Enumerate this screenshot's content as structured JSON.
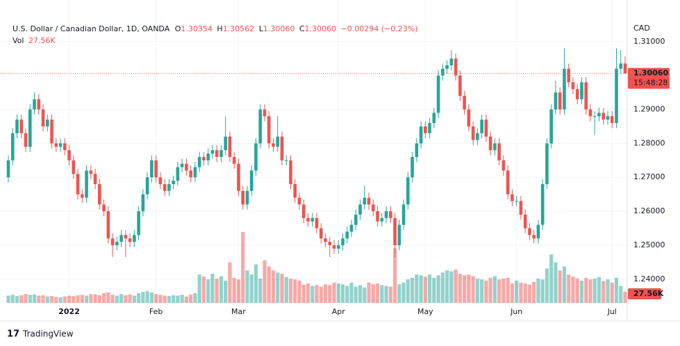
{
  "chart_data": {
    "type": "candlestick",
    "title": "U.S. Dollar / Canadian Dollar, 1D, OANDA",
    "ohlc_names": [
      "O",
      "H",
      "L",
      "C"
    ],
    "ohlc_values": [
      1.30354,
      1.30562,
      1.3006,
      1.3006
    ],
    "ohlc_value_labels": [
      "1.30354",
      "1.30562",
      "1.30060",
      "1.30060"
    ],
    "change_label": "−0.00294 (−0.23%)",
    "volume_title": "Vol",
    "last_volume_label": "27.56K",
    "currency": "CAD",
    "last_price_label": "1.30060",
    "countdown": "15:48:28",
    "brand": "TradingView",
    "up_color": "#26a69a",
    "down_color": "#ef5350",
    "grid": true,
    "categories": [
      null,
      null,
      null,
      null,
      null,
      null,
      null,
      null,
      null,
      null,
      null,
      null,
      null,
      null,
      "2022",
      null,
      null,
      null,
      null,
      null,
      null,
      null,
      null,
      null,
      null,
      null,
      null,
      null,
      null,
      null,
      null,
      null,
      null,
      null,
      "Feb",
      null,
      null,
      null,
      null,
      null,
      null,
      null,
      null,
      null,
      null,
      null,
      null,
      null,
      null,
      null,
      null,
      null,
      null,
      "Mar",
      null,
      null,
      null,
      null,
      null,
      null,
      null,
      null,
      null,
      null,
      null,
      null,
      null,
      null,
      null,
      null,
      null,
      null,
      null,
      null,
      null,
      null,
      "Apr",
      null,
      null,
      null,
      null,
      null,
      null,
      null,
      null,
      null,
      null,
      null,
      null,
      null,
      null,
      null,
      null,
      null,
      null,
      null,
      "May",
      null,
      null,
      null,
      null,
      null,
      null,
      null,
      null,
      null,
      null,
      null,
      null,
      null,
      null,
      null,
      null,
      null,
      null,
      null,
      null,
      "Jun",
      null,
      null,
      null,
      null,
      null,
      null,
      null,
      null,
      null,
      null,
      null,
      null,
      null,
      null,
      null,
      null,
      null,
      null,
      null,
      null,
      null,
      "Jul",
      null,
      null,
      null
    ],
    "open": [
      1.27,
      1.275,
      1.283,
      1.287,
      1.283,
      1.279,
      1.29,
      1.293,
      1.29,
      1.285,
      1.287,
      1.28,
      1.279,
      1.28,
      1.278,
      1.275,
      1.271,
      1.265,
      1.264,
      1.272,
      1.271,
      1.268,
      1.262,
      1.26,
      1.252,
      1.25,
      1.251,
      1.253,
      1.252,
      1.251,
      1.253,
      1.26,
      1.265,
      1.27,
      1.275,
      1.27,
      1.268,
      1.266,
      1.268,
      1.269,
      1.273,
      1.274,
      1.272,
      1.27,
      1.273,
      1.276,
      1.275,
      1.277,
      1.278,
      1.276,
      1.278,
      1.282,
      1.276,
      1.274,
      1.266,
      1.262,
      1.266,
      1.272,
      1.28,
      1.29,
      1.288,
      1.28,
      1.279,
      1.282,
      1.275,
      1.275,
      1.268,
      1.264,
      1.262,
      1.258,
      1.257,
      1.258,
      1.255,
      1.252,
      1.251,
      1.25,
      1.249,
      1.25,
      1.252,
      1.254,
      1.256,
      1.259,
      1.262,
      1.264,
      1.262,
      1.26,
      1.257,
      1.258,
      1.26,
      1.258,
      1.25,
      1.256,
      1.262,
      1.27,
      1.276,
      1.28,
      1.285,
      1.283,
      1.286,
      1.289,
      1.3,
      1.302,
      1.303,
      1.305,
      1.3,
      1.294,
      1.29,
      1.285,
      1.281,
      1.283,
      1.287,
      1.282,
      1.278,
      1.28,
      1.275,
      1.272,
      1.265,
      1.263,
      1.263,
      1.259,
      1.255,
      1.253,
      1.252,
      1.256,
      1.268,
      1.28,
      1.29,
      1.295,
      1.29,
      1.302,
      1.298,
      1.296,
      1.293,
      1.298,
      1.29,
      1.288,
      1.288,
      1.289,
      1.287,
      1.288,
      1.286,
      1.302,
      1.30354
    ],
    "high": [
      1.2765,
      1.2845,
      1.2885,
      1.2885,
      1.2845,
      1.2915,
      1.295,
      1.2945,
      1.2915,
      1.2885,
      1.2885,
      1.2815,
      1.2815,
      1.2815,
      1.2795,
      1.2765,
      1.2725,
      1.2665,
      1.2735,
      1.2735,
      1.2725,
      1.2695,
      1.2635,
      1.2615,
      1.2535,
      1.2525,
      1.2545,
      1.2545,
      1.2535,
      1.2545,
      1.2615,
      1.2665,
      1.2715,
      1.2765,
      1.2765,
      1.2715,
      1.2695,
      1.2695,
      1.2705,
      1.2745,
      1.2755,
      1.2755,
      1.2735,
      1.2745,
      1.2775,
      1.2775,
      1.2785,
      1.2795,
      1.2795,
      1.2795,
      1.288,
      1.2835,
      1.2775,
      1.2755,
      1.2675,
      1.2675,
      1.2735,
      1.2815,
      1.2915,
      1.2915,
      1.2895,
      1.2815,
      1.288,
      1.2835,
      1.2765,
      1.2765,
      1.2695,
      1.2655,
      1.2635,
      1.2595,
      1.2595,
      1.2595,
      1.2565,
      1.2535,
      1.2525,
      1.2515,
      1.2515,
      1.2535,
      1.2555,
      1.2575,
      1.2605,
      1.2635,
      1.2675,
      1.2655,
      1.2635,
      1.2615,
      1.2595,
      1.2615,
      1.2615,
      1.2595,
      1.2575,
      1.2635,
      1.2715,
      1.2775,
      1.2815,
      1.2865,
      1.2865,
      1.2875,
      1.2905,
      1.3015,
      1.3035,
      1.3045,
      1.3075,
      1.3065,
      1.3015,
      1.2955,
      1.2915,
      1.2865,
      1.2845,
      1.2885,
      1.2885,
      1.2835,
      1.2815,
      1.2815,
      1.2765,
      1.2735,
      1.2665,
      1.2645,
      1.2645,
      1.2605,
      1.2565,
      1.2545,
      1.2575,
      1.2695,
      1.2815,
      1.2915,
      1.2985,
      1.2965,
      1.308,
      1.3035,
      1.2995,
      1.2975,
      1.2995,
      1.2995,
      1.2915,
      1.2895,
      1.2905,
      1.2905,
      1.2895,
      1.2895,
      1.308,
      1.3075,
      1.30562
    ],
    "low": [
      1.2685,
      1.2735,
      1.2815,
      1.2815,
      1.2775,
      1.2775,
      1.2885,
      1.2885,
      1.2835,
      1.2835,
      1.2785,
      1.2775,
      1.2775,
      1.2765,
      1.2735,
      1.2695,
      1.2635,
      1.2625,
      1.2625,
      1.2695,
      1.2665,
      1.2605,
      1.2585,
      1.2505,
      1.2465,
      1.2485,
      1.2495,
      1.2465,
      1.2495,
      1.2495,
      1.2515,
      1.2585,
      1.2635,
      1.2685,
      1.2685,
      1.2665,
      1.2645,
      1.2645,
      1.2665,
      1.2675,
      1.2715,
      1.2705,
      1.2685,
      1.2685,
      1.2715,
      1.2735,
      1.2735,
      1.2755,
      1.2745,
      1.2745,
      1.2765,
      1.2745,
      1.2725,
      1.2645,
      1.2605,
      1.2605,
      1.2645,
      1.2705,
      1.2785,
      1.2865,
      1.2785,
      1.2775,
      1.2775,
      1.2735,
      1.2735,
      1.2665,
      1.2625,
      1.2605,
      1.2565,
      1.2555,
      1.2555,
      1.2535,
      1.2505,
      1.2495,
      1.2465,
      1.2475,
      1.2475,
      1.2485,
      1.2505,
      1.2525,
      1.2545,
      1.2575,
      1.2605,
      1.2605,
      1.2585,
      1.2555,
      1.2555,
      1.2565,
      1.2565,
      1.2465,
      1.2485,
      1.2545,
      1.2605,
      1.2685,
      1.2745,
      1.2785,
      1.2815,
      1.2815,
      1.2845,
      1.2875,
      1.2985,
      1.3005,
      1.3015,
      1.2985,
      1.2925,
      1.2885,
      1.2835,
      1.2795,
      1.2795,
      1.2815,
      1.2805,
      1.2765,
      1.2765,
      1.2735,
      1.2705,
      1.2635,
      1.2615,
      1.2615,
      1.2575,
      1.2535,
      1.2515,
      1.2505,
      1.2505,
      1.2545,
      1.2665,
      1.2785,
      1.2885,
      1.2885,
      1.2885,
      1.2965,
      1.2945,
      1.2915,
      1.2915,
      1.2885,
      1.2865,
      1.2825,
      1.2865,
      1.2855,
      1.2855,
      1.2845,
      1.2845,
      1.3005,
      1.3006
    ],
    "close": [
      1.275,
      1.283,
      1.287,
      1.283,
      1.279,
      1.29,
      1.293,
      1.29,
      1.285,
      1.287,
      1.28,
      1.279,
      1.28,
      1.278,
      1.275,
      1.271,
      1.265,
      1.264,
      1.272,
      1.271,
      1.268,
      1.262,
      1.26,
      1.252,
      1.25,
      1.251,
      1.253,
      1.252,
      1.251,
      1.253,
      1.26,
      1.265,
      1.27,
      1.275,
      1.27,
      1.268,
      1.266,
      1.268,
      1.269,
      1.273,
      1.274,
      1.272,
      1.27,
      1.273,
      1.276,
      1.275,
      1.277,
      1.278,
      1.276,
      1.278,
      1.282,
      1.276,
      1.274,
      1.266,
      1.262,
      1.266,
      1.272,
      1.28,
      1.29,
      1.288,
      1.28,
      1.279,
      1.282,
      1.275,
      1.275,
      1.268,
      1.264,
      1.262,
      1.258,
      1.257,
      1.258,
      1.255,
      1.252,
      1.251,
      1.25,
      1.249,
      1.25,
      1.252,
      1.254,
      1.256,
      1.259,
      1.262,
      1.264,
      1.262,
      1.26,
      1.257,
      1.258,
      1.26,
      1.258,
      1.25,
      1.256,
      1.262,
      1.27,
      1.276,
      1.28,
      1.285,
      1.283,
      1.286,
      1.289,
      1.3,
      1.302,
      1.303,
      1.305,
      1.3,
      1.294,
      1.29,
      1.285,
      1.281,
      1.283,
      1.287,
      1.282,
      1.278,
      1.28,
      1.275,
      1.272,
      1.265,
      1.263,
      1.263,
      1.259,
      1.255,
      1.253,
      1.252,
      1.256,
      1.268,
      1.28,
      1.29,
      1.295,
      1.29,
      1.302,
      1.298,
      1.296,
      1.293,
      1.298,
      1.29,
      1.288,
      1.288,
      1.289,
      1.287,
      1.288,
      1.286,
      1.302,
      1.30354,
      1.3006
    ],
    "volume": [
      18,
      20,
      17,
      19,
      22,
      20,
      21,
      18,
      19,
      16,
      17,
      15,
      14,
      16,
      18,
      17,
      19,
      20,
      18,
      22,
      21,
      19,
      24,
      26,
      20,
      18,
      22,
      19,
      21,
      18,
      24,
      27,
      29,
      26,
      22,
      20,
      18,
      17,
      19,
      18,
      20,
      16,
      21,
      24,
      70,
      65,
      58,
      72,
      60,
      66,
      55,
      100,
      62,
      58,
      175,
      80,
      70,
      95,
      60,
      105,
      90,
      80,
      75,
      72,
      64,
      60,
      58,
      55,
      45,
      48,
      42,
      44,
      40,
      46,
      44,
      50,
      48,
      46,
      42,
      50,
      40,
      44,
      38,
      50,
      46,
      48,
      44,
      42,
      40,
      135,
      46,
      50,
      58,
      62,
      70,
      68,
      65,
      70,
      62,
      68,
      75,
      80,
      78,
      82,
      72,
      68,
      70,
      66,
      60,
      58,
      55,
      62,
      66,
      58,
      60,
      62,
      48,
      55,
      50,
      48,
      45,
      52,
      60,
      58,
      85,
      120,
      100,
      80,
      90,
      70,
      65,
      60,
      55,
      62,
      58,
      60,
      64,
      54,
      58,
      50,
      62,
      42,
      27.56
    ],
    "ylim": [
      1.233,
      1.3161
    ],
    "yticks": [
      {
        "value": 1.24,
        "label": "1.24000"
      },
      {
        "value": 1.25,
        "label": "1.25000"
      },
      {
        "value": 1.26,
        "label": "1.26000"
      },
      {
        "value": 1.27,
        "label": "1.27000"
      },
      {
        "value": 1.28,
        "label": "1.28000"
      },
      {
        "value": 1.29,
        "label": "1.29000"
      },
      {
        "value": 1.31,
        "label": "1.31000"
      }
    ],
    "y2lim": [
      0,
      240
    ]
  }
}
